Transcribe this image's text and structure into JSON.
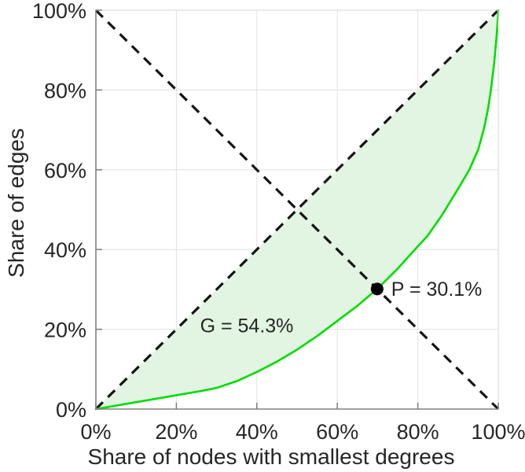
{
  "chart_data": {
    "type": "area",
    "title": "",
    "xlabel": "Share of nodes with smallest degrees",
    "ylabel": "Share of edges",
    "xlim": [
      0,
      100
    ],
    "ylim": [
      0,
      100
    ],
    "grid": true,
    "legend": "none",
    "x_ticks": [
      {
        "value": 0,
        "label": "0%"
      },
      {
        "value": 20,
        "label": "20%"
      },
      {
        "value": 40,
        "label": "40%"
      },
      {
        "value": 60,
        "label": "60%"
      },
      {
        "value": 80,
        "label": "80%"
      },
      {
        "value": 100,
        "label": "100%"
      }
    ],
    "y_ticks": [
      {
        "value": 0,
        "label": "0%"
      },
      {
        "value": 20,
        "label": "20%"
      },
      {
        "value": 40,
        "label": "40%"
      },
      {
        "value": 60,
        "label": "60%"
      },
      {
        "value": 80,
        "label": "80%"
      },
      {
        "value": 100,
        "label": "100%"
      }
    ],
    "series": [
      {
        "name": "lorenz-curve",
        "kind": "line",
        "color": "#00dd00",
        "width": 2.6,
        "points": [
          [
            0,
            0
          ],
          [
            26,
            4.5
          ],
          [
            30,
            5.3
          ],
          [
            35,
            7.0
          ],
          [
            40,
            9.3
          ],
          [
            45,
            11.9
          ],
          [
            50,
            14.9
          ],
          [
            55,
            18.3
          ],
          [
            60,
            22.1
          ],
          [
            65,
            25.9
          ],
          [
            69.9,
            30.1
          ],
          [
            75,
            35.2
          ],
          [
            80,
            40.8
          ],
          [
            82.4,
            43.4
          ],
          [
            86,
            48.6
          ],
          [
            90,
            55.2
          ],
          [
            92.8,
            60
          ],
          [
            95,
            65
          ],
          [
            96.5,
            70.5
          ],
          [
            97.5,
            75.5
          ],
          [
            98.3,
            81
          ],
          [
            99,
            87
          ],
          [
            99.5,
            92.5
          ],
          [
            99.8,
            96.5
          ],
          [
            100,
            100
          ]
        ]
      },
      {
        "name": "equality-diagonal",
        "kind": "dashed-line",
        "color": "#141414",
        "width": 3.2,
        "dash": "12.5 9",
        "points": [
          [
            0,
            0
          ],
          [
            100,
            100
          ]
        ]
      },
      {
        "name": "anti-diagonal",
        "kind": "dashed-line",
        "color": "#141414",
        "width": 3.2,
        "dash": "12.5 9",
        "points": [
          [
            0,
            100
          ],
          [
            100,
            0
          ]
        ]
      }
    ],
    "fill_between": {
      "between": [
        "equality-diagonal",
        "lorenz-curve"
      ],
      "color": "#e2f4e2"
    },
    "marker": {
      "name": "intersection-point",
      "x": 69.9,
      "y": 30.1,
      "radius": 8,
      "color": "#000000"
    },
    "annotations": [
      {
        "id": "gini-value",
        "text": "G = 54.3%",
        "x": 37.5,
        "y": 20.8,
        "anchor": "middle"
      },
      {
        "id": "intersection-value",
        "text": "P = 30.1%",
        "x": 73.4,
        "y": 30.0,
        "anchor": "start"
      }
    ],
    "style": {
      "background": "#ffffff",
      "grid_color": "#e0e0e0",
      "box_color": "#d6d6d6",
      "spine_color": "#808080",
      "tick_color": "#808080",
      "text_color": "#262626"
    }
  }
}
